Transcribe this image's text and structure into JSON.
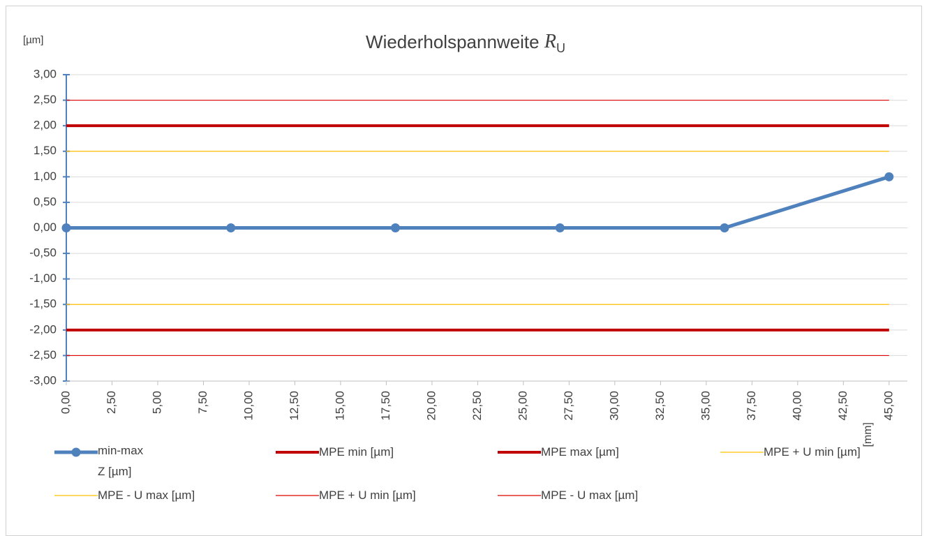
{
  "chart_data": {
    "type": "line",
    "title": "Wiederholspannweite",
    "title_symbol": "R",
    "title_subscript": "U",
    "y_label": "[µm]",
    "x_label": "[mm]",
    "xlim": [
      0,
      46
    ],
    "ylim": [
      -3,
      3
    ],
    "xticks": [
      {
        "value": 0,
        "label": "0,00"
      },
      {
        "value": 2.5,
        "label": "2,50"
      },
      {
        "value": 5,
        "label": "5,00"
      },
      {
        "value": 7.5,
        "label": "7,50"
      },
      {
        "value": 10,
        "label": "10,00"
      },
      {
        "value": 12.5,
        "label": "12,50"
      },
      {
        "value": 15,
        "label": "15,00"
      },
      {
        "value": 17.5,
        "label": "17,50"
      },
      {
        "value": 20,
        "label": "20,00"
      },
      {
        "value": 22.5,
        "label": "22,50"
      },
      {
        "value": 25,
        "label": "25,00"
      },
      {
        "value": 27.5,
        "label": "27,50"
      },
      {
        "value": 30,
        "label": "30,00"
      },
      {
        "value": 32.5,
        "label": "32,50"
      },
      {
        "value": 35,
        "label": "35,00"
      },
      {
        "value": 37.5,
        "label": "37,50"
      },
      {
        "value": 40,
        "label": "40,00"
      },
      {
        "value": 42.5,
        "label": "42,50"
      },
      {
        "value": 45,
        "label": "45,00"
      }
    ],
    "yticks": [
      {
        "value": 3,
        "label": "3,00"
      },
      {
        "value": 2.5,
        "label": "2,50"
      },
      {
        "value": 2,
        "label": "2,00"
      },
      {
        "value": 1.5,
        "label": "1,50"
      },
      {
        "value": 1,
        "label": "1,00"
      },
      {
        "value": 0.5,
        "label": "0,50"
      },
      {
        "value": 0,
        "label": "0,00"
      },
      {
        "value": -0.5,
        "label": "-0,50"
      },
      {
        "value": -1,
        "label": "-1,00"
      },
      {
        "value": -1.5,
        "label": "-1,50"
      },
      {
        "value": -2,
        "label": "-2,00"
      },
      {
        "value": -2.5,
        "label": "-2,50"
      },
      {
        "value": -3,
        "label": "-3,00"
      }
    ],
    "grid": true,
    "series": [
      {
        "name": "min-max Z [µm]",
        "color": "#4f81bd",
        "width": 5,
        "marker": true,
        "x": [
          0,
          9,
          18,
          27,
          36,
          45
        ],
        "values": [
          0,
          0,
          0,
          0,
          0,
          1
        ]
      },
      {
        "name": "MPE min [µm]",
        "color": "#c00000",
        "width": 4,
        "x": [
          0,
          45
        ],
        "values": [
          -2,
          -2
        ]
      },
      {
        "name": "MPE max [µm]",
        "color": "#c00000",
        "width": 4,
        "x": [
          0,
          45
        ],
        "values": [
          2,
          2
        ]
      },
      {
        "name": "MPE + U min [µm]",
        "color": "#ffc000",
        "width": 1.2,
        "x": [
          0,
          45
        ],
        "values": [
          -1.5,
          -1.5
        ]
      },
      {
        "name": "MPE - U max [µm]",
        "color": "#ffc000",
        "width": 1.2,
        "x": [
          0,
          45
        ],
        "values": [
          1.5,
          1.5
        ]
      },
      {
        "name": "MPE + U min [µm]",
        "color": "#e00000",
        "width": 1.2,
        "x": [
          0,
          45
        ],
        "values": [
          -2.5,
          -2.5
        ]
      },
      {
        "name": "MPE - U max [µm]",
        "color": "#e00000",
        "width": 1.2,
        "x": [
          0,
          45
        ],
        "values": [
          2.5,
          2.5
        ]
      }
    ]
  }
}
